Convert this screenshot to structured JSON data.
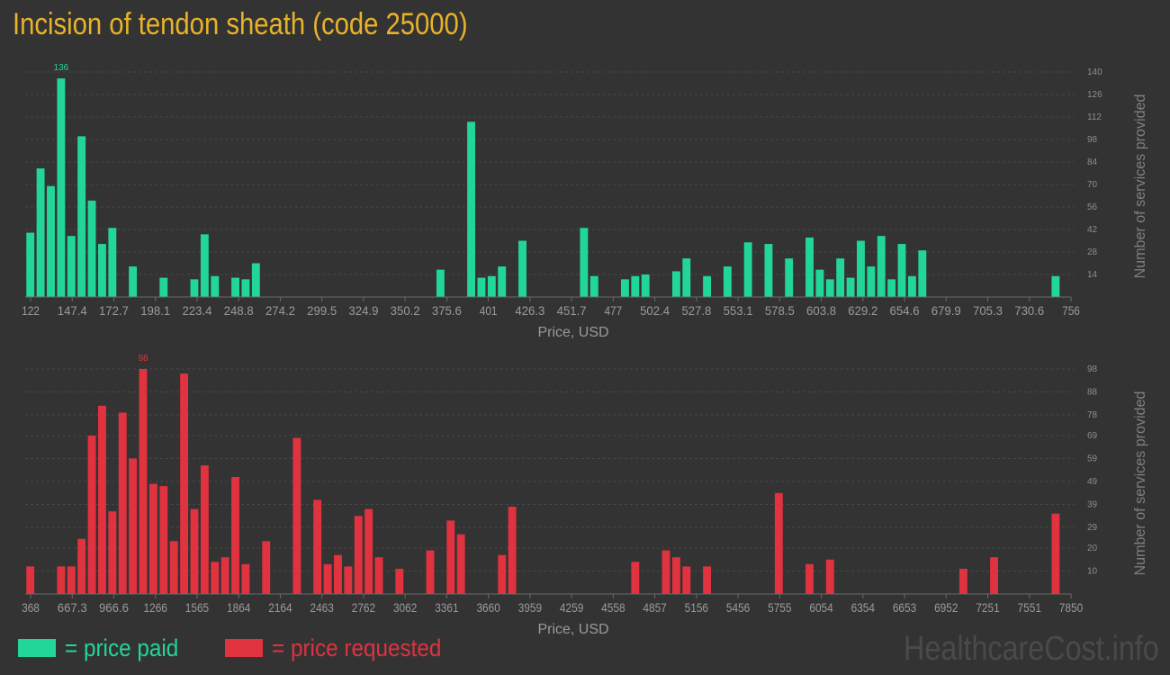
{
  "title": "Incision of tendon sheath (code 25000)",
  "legend": {
    "paid_label": "= price paid",
    "requested_label": "= price requested"
  },
  "watermark": "HealthcareCost.info",
  "colors": {
    "paid": "#22d699",
    "requested": "#e0323f",
    "title": "#e8b32a",
    "background": "#333333",
    "axis_text": "#9a9a9a"
  },
  "chart_data": [
    {
      "type": "bar",
      "name": "price paid",
      "xlabel": "Price, USD",
      "ylabel": "Number of services provided",
      "x_tick_labels": [
        "122",
        "147.4",
        "172.7",
        "198.1",
        "223.4",
        "248.8",
        "274.2",
        "299.5",
        "324.9",
        "350.2",
        "375.6",
        "401",
        "426.3",
        "451.7",
        "477",
        "502.4",
        "527.8",
        "553.1",
        "578.5",
        "603.8",
        "629.2",
        "654.6",
        "679.9",
        "705.3",
        "730.6",
        "756"
      ],
      "y_ticks": [
        14,
        28,
        42,
        56,
        70,
        84,
        98,
        112,
        126,
        140
      ],
      "ylim": [
        0,
        140
      ],
      "max_label": "136",
      "bin_count": 102,
      "bars": [
        [
          0,
          40
        ],
        [
          1,
          80
        ],
        [
          2,
          69
        ],
        [
          3,
          136
        ],
        [
          4,
          38
        ],
        [
          5,
          100
        ],
        [
          6,
          60
        ],
        [
          7,
          33
        ],
        [
          8,
          43
        ],
        [
          10,
          19
        ],
        [
          13,
          12
        ],
        [
          16,
          11
        ],
        [
          17,
          39
        ],
        [
          18,
          13
        ],
        [
          20,
          12
        ],
        [
          21,
          11
        ],
        [
          22,
          21
        ],
        [
          40,
          17
        ],
        [
          43,
          109
        ],
        [
          44,
          12
        ],
        [
          45,
          13
        ],
        [
          46,
          19
        ],
        [
          48,
          35
        ],
        [
          54,
          43
        ],
        [
          55,
          13
        ],
        [
          58,
          11
        ],
        [
          59,
          13
        ],
        [
          60,
          14
        ],
        [
          63,
          16
        ],
        [
          64,
          24
        ],
        [
          66,
          13
        ],
        [
          68,
          19
        ],
        [
          70,
          34
        ],
        [
          72,
          33
        ],
        [
          74,
          24
        ],
        [
          76,
          37
        ],
        [
          77,
          17
        ],
        [
          78,
          11
        ],
        [
          79,
          24
        ],
        [
          80,
          12
        ],
        [
          81,
          35
        ],
        [
          82,
          19
        ],
        [
          83,
          38
        ],
        [
          84,
          11
        ],
        [
          85,
          33
        ],
        [
          86,
          13
        ],
        [
          87,
          29
        ],
        [
          100,
          13
        ]
      ]
    },
    {
      "type": "bar",
      "name": "price requested",
      "xlabel": "Price, USD",
      "ylabel": "Number of services provided",
      "x_tick_labels": [
        "368",
        "667.3",
        "966.6",
        "1266",
        "1565",
        "1864",
        "2164",
        "2463",
        "2762",
        "3062",
        "3361",
        "3660",
        "3959",
        "4259",
        "4558",
        "4857",
        "5156",
        "5456",
        "5755",
        "6054",
        "6354",
        "6653",
        "6952",
        "7251",
        "7551",
        "7850"
      ],
      "y_ticks": [
        10,
        20,
        29,
        39,
        49,
        59,
        69,
        78,
        88,
        98
      ],
      "ylim": [
        0,
        98
      ],
      "max_label": "98",
      "bin_count": 102,
      "bars": [
        [
          0,
          12
        ],
        [
          3,
          12
        ],
        [
          4,
          12
        ],
        [
          5,
          24
        ],
        [
          6,
          69
        ],
        [
          7,
          82
        ],
        [
          8,
          36
        ],
        [
          9,
          79
        ],
        [
          10,
          59
        ],
        [
          11,
          98
        ],
        [
          12,
          48
        ],
        [
          13,
          47
        ],
        [
          14,
          23
        ],
        [
          15,
          96
        ],
        [
          16,
          37
        ],
        [
          17,
          56
        ],
        [
          18,
          14
        ],
        [
          19,
          16
        ],
        [
          20,
          51
        ],
        [
          21,
          13
        ],
        [
          23,
          23
        ],
        [
          26,
          68
        ],
        [
          28,
          41
        ],
        [
          29,
          13
        ],
        [
          30,
          17
        ],
        [
          31,
          12
        ],
        [
          32,
          34
        ],
        [
          33,
          37
        ],
        [
          34,
          16
        ],
        [
          36,
          11
        ],
        [
          39,
          19
        ],
        [
          41,
          32
        ],
        [
          42,
          26
        ],
        [
          46,
          17
        ],
        [
          47,
          38
        ],
        [
          59,
          14
        ],
        [
          62,
          19
        ],
        [
          63,
          16
        ],
        [
          64,
          12
        ],
        [
          66,
          12
        ],
        [
          73,
          44
        ],
        [
          76,
          13
        ],
        [
          78,
          15
        ],
        [
          91,
          11
        ],
        [
          94,
          16
        ],
        [
          100,
          35
        ]
      ]
    }
  ]
}
